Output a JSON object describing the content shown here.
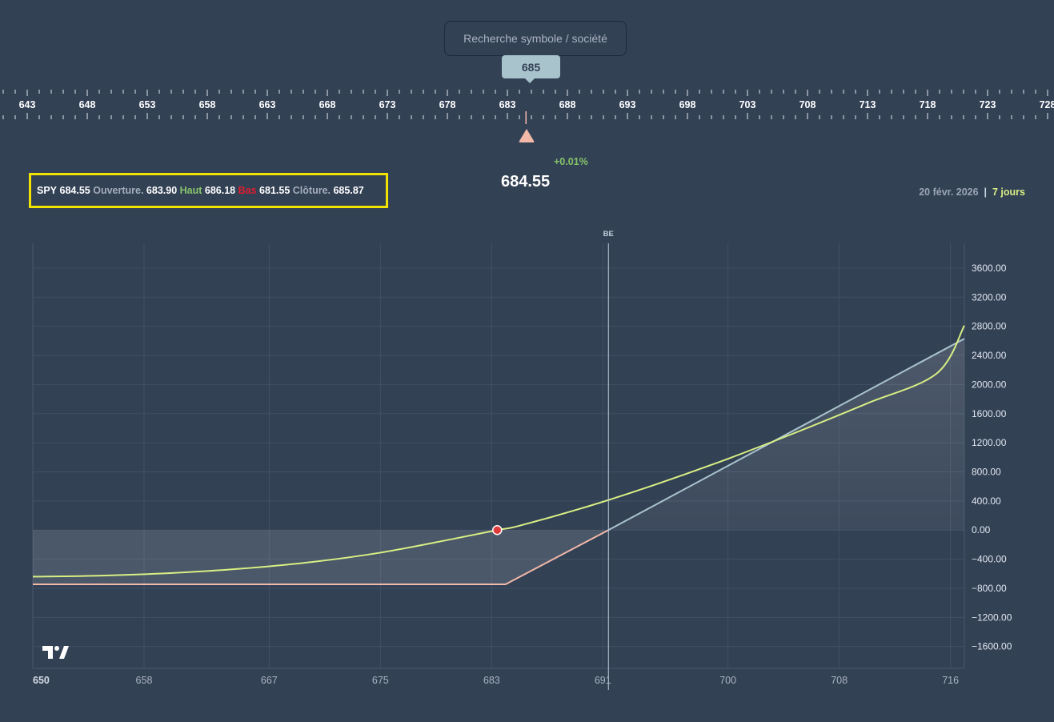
{
  "search": {
    "placeholder": "Recherche symbole / société"
  },
  "strike_tooltip": "685",
  "ruler": {
    "labels": [
      "643",
      "648",
      "653",
      "658",
      "663",
      "668",
      "673",
      "678",
      "683",
      "688",
      "693",
      "698",
      "703",
      "708",
      "713",
      "718",
      "723",
      "728"
    ],
    "marker_value": 684.55
  },
  "price_change": "+0.01%",
  "current_price": "684.55",
  "ohlc": {
    "symbol": "SPY",
    "last": "684.55",
    "open_label": "Ouverture.",
    "open": "683.90",
    "high_label": "Haut",
    "high": "686.18",
    "low_label": "Bas",
    "low": "681.55",
    "close_label": "Clôture.",
    "close": "685.87"
  },
  "expiry": {
    "date": "20 févr. 2026",
    "separator": "|",
    "days": "7 jours"
  },
  "chart_data": {
    "type": "line",
    "be_label": "BE",
    "break_even": 691.4,
    "x_ticks": [
      "650",
      "658",
      "667",
      "675",
      "683",
      "691",
      "700",
      "708",
      "716"
    ],
    "y_ticks": [
      "3600.00",
      "3200.00",
      "2800.00",
      "2400.00",
      "2000.00",
      "1600.00",
      "1200.00",
      "800.00",
      "400.00",
      "0.00",
      "−400.00",
      "−800.00",
      "−1200.00",
      "−1600.00"
    ],
    "ylim": [
      -1900,
      3940
    ],
    "xlim": [
      650,
      717
    ],
    "series": [
      {
        "color": "#d9ef84",
        "points": [
          [
            650,
            -640
          ],
          [
            655,
            -625
          ],
          [
            660,
            -590
          ],
          [
            665,
            -530
          ],
          [
            670,
            -440
          ],
          [
            675,
            -310
          ],
          [
            680,
            -130
          ],
          [
            683.4,
            0
          ],
          [
            685,
            60
          ],
          [
            690,
            330
          ],
          [
            695,
            640
          ],
          [
            700,
            980
          ],
          [
            705,
            1350
          ],
          [
            710,
            1740
          ],
          [
            715,
            2150
          ],
          [
            717,
            2810
          ]
        ]
      },
      {
        "color": "#a9c3cc",
        "points": [
          [
            650,
            -745
          ],
          [
            684.0,
            -745
          ],
          [
            691.4,
            0
          ],
          [
            717,
            2630
          ]
        ]
      }
    ],
    "marker": {
      "x": 683.4,
      "y": 0,
      "color": "#e03b3b"
    },
    "colors": {
      "profit": "#a9c3cc",
      "loss": "#f2b8a8"
    }
  }
}
